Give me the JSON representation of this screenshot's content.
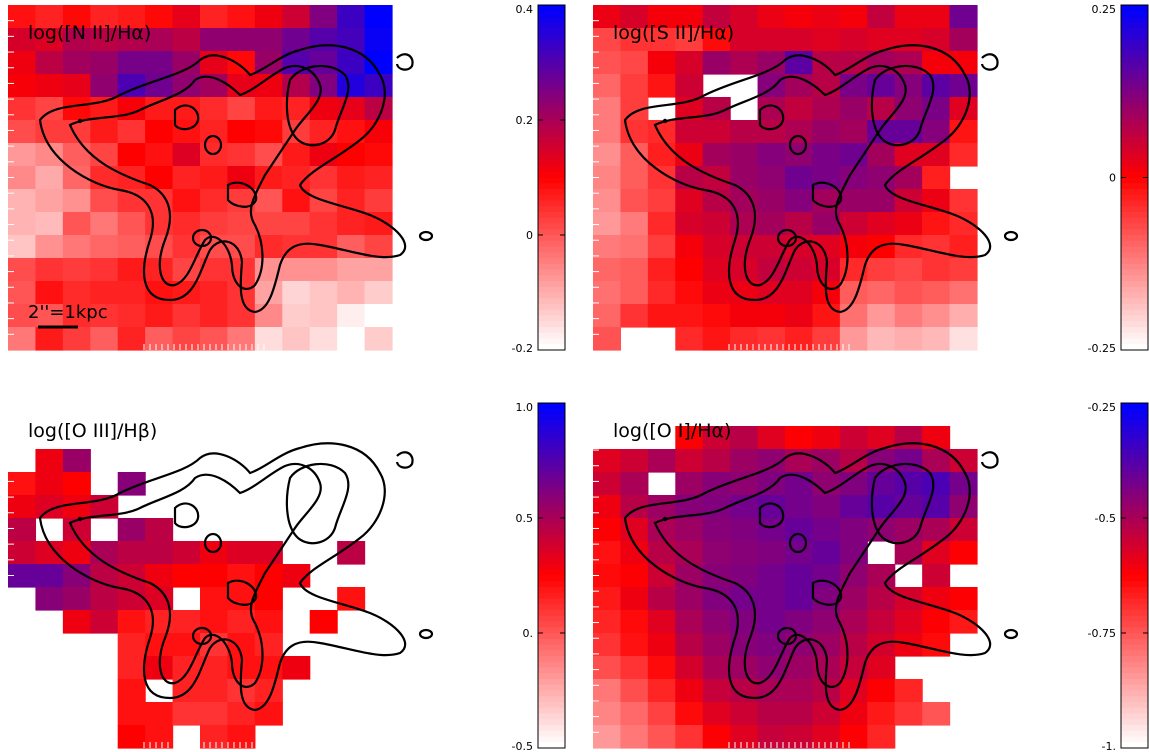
{
  "figure": {
    "scale_bar_label": "2''=1kpc"
  },
  "chart_data": [
    {
      "type": "heatmap",
      "title": "log([N II]/Hα)",
      "colorbar": {
        "min": -0.2,
        "max": 0.4,
        "ticks": [
          "0.4",
          "0.2",
          "0",
          "-0.2"
        ],
        "tick_values": [
          0.4,
          0.2,
          0.0,
          -0.2
        ]
      },
      "colormap": [
        "#ffffff",
        "#ff0000",
        "#0000ff"
      ],
      "grid": [
        [
          0.08,
          0.06,
          0.09,
          0.06,
          0.07,
          0.09,
          0.13,
          0.06,
          0.08,
          0.12,
          0.16,
          0.25,
          0.33,
          0.42
        ],
        [
          0.15,
          0.14,
          0.19,
          0.18,
          0.19,
          0.2,
          0.18,
          0.23,
          0.23,
          0.23,
          0.27,
          0.3,
          0.32,
          0.39
        ],
        [
          0.12,
          0.18,
          0.21,
          0.22,
          0.26,
          0.26,
          0.22,
          0.13,
          0.09,
          0.22,
          0.3,
          0.28,
          0.33,
          0.43
        ],
        [
          0.11,
          0.12,
          0.13,
          0.23,
          0.31,
          0.27,
          0.23,
          0.21,
          0.13,
          0.12,
          0.19,
          0.25,
          0.36,
          0.33
        ],
        [
          0.04,
          0.02,
          0.09,
          0.07,
          0.11,
          0.07,
          0.07,
          0.05,
          0.02,
          0.07,
          0.06,
          0.12,
          0.13,
          0.18
        ],
        [
          0.01,
          0.03,
          0.03,
          0.07,
          0.04,
          0.1,
          0.08,
          0.06,
          0.1,
          0.09,
          0.03,
          0.06,
          0.08,
          0.11
        ],
        [
          -0.08,
          -0.06,
          -0.01,
          0.02,
          0.1,
          0.08,
          0.14,
          0.05,
          0.04,
          0.01,
          0.07,
          0.12,
          0.1,
          0.09
        ],
        [
          -0.06,
          -0.1,
          -0.02,
          0.05,
          0.06,
          0.1,
          0.06,
          0.07,
          0.12,
          0.07,
          0.06,
          0.04,
          0.07,
          0.06
        ],
        [
          -0.11,
          -0.09,
          -0.07,
          0.01,
          0.04,
          0.04,
          0.08,
          0.05,
          0.03,
          0.0,
          0.08,
          0.02,
          0.06,
          0.03
        ],
        [
          -0.11,
          -0.12,
          0.0,
          -0.04,
          0.0,
          0.04,
          0.05,
          0.03,
          0.02,
          0.02,
          0.02,
          0.04,
          0.06,
          0.07
        ],
        [
          -0.13,
          -0.07,
          -0.04,
          -0.02,
          -0.01,
          0.01,
          0.04,
          0.01,
          0.01,
          0.05,
          0.04,
          0.04,
          -0.01,
          0.02
        ],
        [
          0.01,
          0.04,
          0.03,
          0.04,
          0.07,
          0.06,
          0.02,
          0.04,
          0.04,
          -0.07,
          -0.07,
          -0.07,
          -0.09,
          -0.09
        ],
        [
          0.0,
          0.08,
          0.05,
          0.06,
          0.06,
          0.08,
          0.07,
          0.06,
          0.04,
          -0.09,
          -0.15,
          -0.13,
          -0.11,
          -0.14
        ],
        [
          0.01,
          0.0,
          0.05,
          0.04,
          0.05,
          0.07,
          0.04,
          0.06,
          0.04,
          -0.06,
          -0.14,
          -0.13,
          -0.18,
          -0.2
        ],
        [
          -0.04,
          0.07,
          0.03,
          -0.01,
          0.06,
          -0.01,
          0.02,
          0.0,
          -0.04,
          -0.16,
          -0.13,
          -0.16,
          -0.22,
          -0.14
        ]
      ]
    },
    {
      "type": "heatmap",
      "title": "log([S II]/Hα)",
      "colorbar": {
        "min": -0.25,
        "max": 0.25,
        "ticks": [
          "0.25",
          "0",
          "-0.25"
        ],
        "tick_values": [
          0.25,
          0.0,
          -0.25
        ]
      },
      "colormap": [
        "#ffffff",
        "#ff0000",
        "#0000ff"
      ],
      "grid": [
        [
          0.02,
          0.04,
          0.01,
          0.01,
          0.06,
          0.04,
          0.02,
          0.01,
          0.02,
          0.01,
          0.06,
          0.02,
          0.02,
          0.14
        ],
        [
          -0.07,
          -0.05,
          -0.05,
          -0.06,
          -0.01,
          0.04,
          0.04,
          0.04,
          0.03,
          0.04,
          0.03,
          0.03,
          0.04,
          0.09
        ],
        [
          -0.08,
          -0.07,
          0.01,
          0.04,
          0.1,
          0.08,
          0.1,
          0.16,
          0.07,
          0.07,
          0.09,
          0.08,
          0.01,
          0.01
        ],
        [
          -0.1,
          -0.06,
          -0.02,
          0.05,
          null,
          null,
          0.12,
          0.09,
          0.07,
          0.13,
          0.15,
          0.12,
          0.16,
          0.14
        ],
        [
          -0.12,
          -0.06,
          null,
          0.03,
          0.07,
          null,
          0.08,
          0.06,
          0.08,
          0.1,
          0.07,
          0.11,
          0.13,
          0.03
        ],
        [
          -0.12,
          -0.05,
          -0.04,
          0.05,
          0.05,
          0.07,
          0.07,
          0.08,
          0.1,
          0.09,
          0.15,
          0.15,
          0.12,
          -0.02
        ],
        [
          -0.14,
          -0.09,
          -0.03,
          0.02,
          0.09,
          0.1,
          0.12,
          0.11,
          0.13,
          0.14,
          0.09,
          0.03,
          0.03,
          -0.04
        ],
        [
          -0.13,
          -0.09,
          -0.05,
          0.07,
          0.06,
          0.1,
          0.11,
          0.14,
          0.13,
          0.12,
          0.11,
          0.09,
          -0.03,
          null
        ],
        [
          -0.14,
          -0.08,
          -0.06,
          0.03,
          0.07,
          0.09,
          0.1,
          0.12,
          0.09,
          0.1,
          0.1,
          0.05,
          0.02,
          -0.05
        ],
        [
          -0.15,
          -0.12,
          -0.04,
          0.04,
          0.05,
          0.08,
          0.09,
          0.07,
          0.1,
          0.05,
          0.03,
          0.02,
          -0.02,
          -0.04
        ],
        [
          -0.12,
          -0.11,
          -0.06,
          0.01,
          0.04,
          0.05,
          0.05,
          0.04,
          0.03,
          0.01,
          0.0,
          -0.04,
          -0.05,
          -0.03
        ],
        [
          -0.1,
          -0.09,
          -0.03,
          0.0,
          0.03,
          0.04,
          0.06,
          0.05,
          0.04,
          -0.04,
          -0.06,
          -0.07,
          -0.05,
          -0.06
        ],
        [
          -0.11,
          -0.09,
          -0.04,
          -0.01,
          0.02,
          0.02,
          0.03,
          0.03,
          0.01,
          -0.09,
          -0.1,
          -0.08,
          -0.09,
          -0.11
        ],
        [
          -0.1,
          -0.05,
          -0.02,
          -0.02,
          -0.01,
          0.01,
          0.01,
          0.02,
          -0.02,
          -0.11,
          -0.15,
          -0.12,
          -0.14,
          -0.17
        ],
        [
          -0.08,
          null,
          null,
          -0.04,
          -0.02,
          -0.04,
          -0.05,
          -0.03,
          -0.06,
          -0.15,
          -0.18,
          -0.17,
          -0.18,
          -0.22
        ]
      ]
    },
    {
      "type": "heatmap",
      "title": "log([O III]/Hβ)",
      "colorbar": {
        "min": -0.5,
        "max": 1.0,
        "ticks": [
          "1.0",
          "0.5",
          "0.",
          "-0.5"
        ],
        "tick_values": [
          1.0,
          0.5,
          0.0,
          -0.5
        ]
      },
      "colormap": [
        "#ffffff",
        "#ff0000",
        "#0000ff"
      ],
      "grid": [
        [
          null,
          null,
          null,
          null,
          null,
          null,
          null,
          null,
          null,
          null,
          null,
          null,
          null,
          null
        ],
        [
          null,
          null,
          null,
          null,
          null,
          null,
          null,
          null,
          null,
          null,
          null,
          null,
          null,
          null
        ],
        [
          null,
          0.3,
          0.55,
          null,
          null,
          null,
          null,
          null,
          null,
          null,
          null,
          null,
          null,
          null
        ],
        [
          0.2,
          0.3,
          0.25,
          null,
          0.6,
          null,
          null,
          null,
          null,
          null,
          null,
          null,
          null,
          null
        ],
        [
          0.3,
          0.35,
          0.3,
          0.4,
          null,
          null,
          null,
          null,
          null,
          null,
          null,
          null,
          null,
          null
        ],
        [
          0.45,
          null,
          0.4,
          null,
          0.55,
          0.45,
          null,
          null,
          null,
          null,
          null,
          null,
          null,
          null
        ],
        [
          0.4,
          0.35,
          0.3,
          0.5,
          0.45,
          0.45,
          0.4,
          0.3,
          0.35,
          0.35,
          null,
          null,
          0.45,
          null
        ],
        [
          0.7,
          0.7,
          0.6,
          0.45,
          0.4,
          0.3,
          0.25,
          0.25,
          0.2,
          0.25,
          0.3,
          null,
          null,
          null
        ],
        [
          null,
          0.6,
          0.55,
          0.45,
          0.4,
          0.35,
          null,
          0.2,
          0.2,
          0.25,
          null,
          null,
          0.2,
          null
        ],
        [
          null,
          null,
          0.3,
          0.4,
          0.2,
          0.15,
          0.15,
          0.2,
          0.15,
          0.2,
          null,
          0.25,
          null,
          null
        ],
        [
          null,
          null,
          null,
          null,
          0.15,
          0.2,
          0.2,
          0.1,
          0.2,
          0.15,
          null,
          null,
          null,
          null
        ],
        [
          null,
          null,
          null,
          null,
          0.15,
          0.3,
          0.15,
          0.15,
          0.2,
          0.2,
          0.3,
          null,
          null,
          null
        ],
        [
          null,
          null,
          null,
          null,
          0.2,
          null,
          0.15,
          0.15,
          0.1,
          0.15,
          null,
          null,
          null,
          null
        ],
        [
          null,
          null,
          null,
          null,
          0.2,
          0.2,
          0.1,
          0.1,
          0.15,
          0.2,
          null,
          null,
          null,
          null
        ],
        [
          null,
          null,
          null,
          null,
          0.25,
          0.2,
          null,
          0.15,
          0.2,
          null,
          null,
          null,
          null,
          null
        ]
      ]
    },
    {
      "type": "heatmap",
      "title": "log([O I]/Hα)",
      "colorbar": {
        "min": -1.0,
        "max": -0.25,
        "ticks": [
          "-0.25",
          "-0.5",
          "-0.75",
          "-1."
        ],
        "tick_values": [
          -0.25,
          -0.5,
          -0.75,
          -1.0
        ]
      },
      "colormap": [
        "#ffffff",
        "#ff0000",
        "#0000ff"
      ],
      "grid": [
        [
          null,
          null,
          null,
          null,
          null,
          null,
          null,
          null,
          null,
          null,
          null,
          null,
          null,
          null
        ],
        [
          null,
          null,
          null,
          -0.62,
          -0.55,
          -0.52,
          -0.58,
          -0.62,
          -0.6,
          -0.55,
          -0.58,
          -0.52,
          -0.6,
          null
        ],
        [
          -0.58,
          -0.55,
          -0.5,
          -0.55,
          -0.52,
          -0.48,
          -0.46,
          -0.5,
          -0.48,
          -0.52,
          -0.45,
          -0.42,
          -0.5,
          -0.55
        ],
        [
          -0.55,
          -0.5,
          null,
          -0.48,
          -0.45,
          -0.46,
          -0.44,
          -0.42,
          -0.46,
          -0.44,
          -0.4,
          -0.38,
          -0.36,
          -0.42
        ],
        [
          -0.6,
          -0.52,
          -0.48,
          -0.45,
          -0.44,
          -0.42,
          -0.4,
          -0.42,
          -0.44,
          -0.4,
          -0.38,
          -0.4,
          -0.38,
          -0.46
        ],
        [
          -0.62,
          -0.58,
          -0.5,
          -0.48,
          -0.45,
          -0.44,
          -0.42,
          -0.4,
          -0.42,
          -0.44,
          -0.46,
          -0.48,
          -0.5,
          -0.55
        ],
        [
          -0.65,
          -0.6,
          -0.52,
          -0.5,
          -0.46,
          -0.45,
          -0.44,
          -0.42,
          -0.4,
          -0.44,
          null,
          -0.5,
          -0.58,
          -0.62
        ],
        [
          -0.64,
          -0.62,
          -0.55,
          -0.48,
          -0.45,
          -0.44,
          -0.42,
          -0.4,
          -0.42,
          -0.46,
          -0.5,
          null,
          -0.55,
          null
        ],
        [
          -0.66,
          -0.6,
          -0.52,
          -0.48,
          -0.44,
          -0.42,
          -0.42,
          -0.4,
          -0.44,
          -0.48,
          -0.52,
          -0.56,
          -0.6,
          -0.62
        ],
        [
          -0.68,
          -0.64,
          -0.58,
          -0.5,
          -0.46,
          -0.44,
          -0.42,
          -0.44,
          -0.46,
          -0.5,
          -0.54,
          -0.58,
          -0.62,
          -0.66
        ],
        [
          -0.7,
          -0.65,
          -0.6,
          -0.52,
          -0.48,
          -0.45,
          -0.44,
          -0.46,
          -0.48,
          -0.52,
          -0.56,
          -0.6,
          -0.64,
          null
        ],
        [
          -0.74,
          -0.7,
          -0.64,
          -0.56,
          -0.5,
          -0.48,
          -0.46,
          -0.48,
          -0.5,
          -0.54,
          -0.58,
          null,
          null,
          null
        ],
        [
          -0.8,
          -0.74,
          -0.68,
          -0.6,
          -0.54,
          -0.52,
          -0.5,
          -0.5,
          -0.52,
          -0.58,
          -0.62,
          -0.68,
          null,
          null
        ],
        [
          -0.82,
          -0.78,
          -0.72,
          -0.64,
          -0.58,
          -0.55,
          -0.52,
          -0.52,
          -0.55,
          -0.6,
          -0.66,
          -0.7,
          -0.75,
          null
        ],
        [
          -0.85,
          -0.8,
          -0.75,
          -0.7,
          -0.62,
          -0.58,
          -0.54,
          -0.55,
          -0.58,
          -0.62,
          -0.68,
          null,
          null,
          null
        ]
      ]
    }
  ]
}
